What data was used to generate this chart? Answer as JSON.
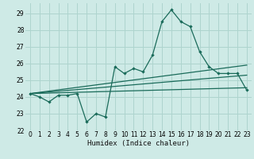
{
  "xlabel": "Humidex (Indice chaleur)",
  "background_color": "#ceeae6",
  "grid_color": "#aed4ce",
  "line_color": "#1a6b5a",
  "xlim": [
    -0.5,
    23.5
  ],
  "ylim": [
    22,
    29.6
  ],
  "yticks": [
    22,
    23,
    24,
    25,
    26,
    27,
    28,
    29
  ],
  "xticks": [
    0,
    1,
    2,
    3,
    4,
    5,
    6,
    7,
    8,
    9,
    10,
    11,
    12,
    13,
    14,
    15,
    16,
    17,
    18,
    19,
    20,
    21,
    22,
    23
  ],
  "xtick_labels": [
    "0",
    "1",
    "2",
    "3",
    "4",
    "5",
    "6",
    "7",
    "8",
    "9",
    "10",
    "11",
    "12",
    "13",
    "14",
    "15",
    "16",
    "17",
    "18",
    "19",
    "20",
    "21",
    "22",
    "23"
  ],
  "main_x": [
    0,
    1,
    2,
    3,
    4,
    5,
    6,
    7,
    8,
    9,
    10,
    11,
    12,
    13,
    14,
    15,
    16,
    17,
    18,
    19,
    20,
    21,
    22,
    23
  ],
  "main_y": [
    24.2,
    24.0,
    23.7,
    24.1,
    24.1,
    24.2,
    22.5,
    23.0,
    22.8,
    25.8,
    25.4,
    25.7,
    25.5,
    26.5,
    28.5,
    29.2,
    28.5,
    28.2,
    26.7,
    25.8,
    25.4,
    25.4,
    25.4,
    24.4
  ],
  "trend1_x": [
    0,
    23
  ],
  "trend1_y": [
    24.2,
    25.9
  ],
  "trend2_x": [
    0,
    23
  ],
  "trend2_y": [
    24.2,
    25.3
  ],
  "trend3_x": [
    0,
    23
  ],
  "trend3_y": [
    24.2,
    24.55
  ],
  "tick_fontsize": 5.5,
  "xlabel_fontsize": 6.5
}
